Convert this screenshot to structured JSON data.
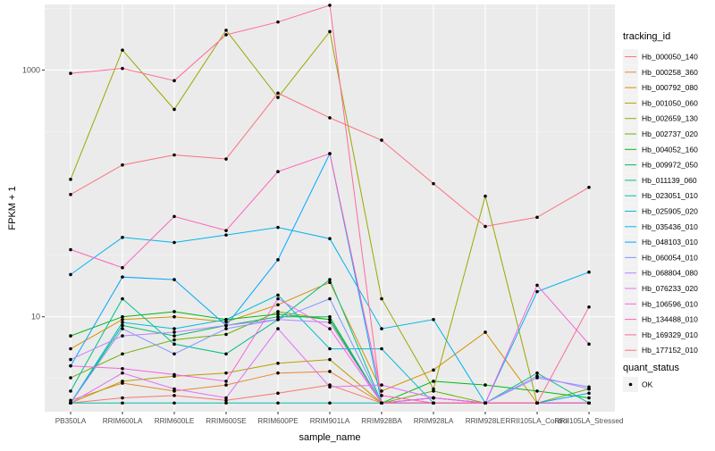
{
  "chart_data": {
    "type": "line",
    "xlabel": "sample_name",
    "ylabel": "FPKM + 1",
    "y_scale": "log10",
    "ylim": [
      1.7,
      3400
    ],
    "y_ticks": [
      10,
      1000
    ],
    "y_tick_labels": [
      "10",
      "1000"
    ],
    "grid": true,
    "categories": [
      "PB350LA",
      "RRIM600LA",
      "RRIM600LE",
      "RRIM600SE",
      "RRIM600PE",
      "RRIM901LA",
      "RRIM928BA",
      "RRIM928LA",
      "RRIM928LE",
      "RRII105LA_Control",
      "RRII105LA_Stressed"
    ],
    "legend": {
      "color_title": "tracking_id",
      "shape_title": "quant_status",
      "shape_entries": [
        "OK"
      ],
      "position": "right"
    },
    "series": [
      {
        "name": "Hb_000050_140",
        "color": "#F8766D",
        "values": [
          2,
          2.2,
          2.3,
          2.1,
          2.4,
          2.8,
          2,
          2,
          2,
          2,
          2
        ]
      },
      {
        "name": "Hb_000258_360",
        "color": "#E98531",
        "values": [
          2.1,
          2.9,
          2.5,
          2.8,
          3.5,
          3.6,
          2,
          2,
          2,
          2,
          2
        ]
      },
      {
        "name": "Hb_000792_080",
        "color": "#D69100",
        "values": [
          5.5,
          9.5,
          10,
          9.1,
          12.5,
          19,
          2.5,
          3.7,
          7.5,
          2,
          2
        ]
      },
      {
        "name": "Hb_001050_060",
        "color": "#BC9D00",
        "values": [
          2,
          3,
          3.3,
          3.5,
          4.2,
          4.5,
          2,
          2.2,
          2,
          2,
          2
        ]
      },
      {
        "name": "Hb_002659_130",
        "color": "#9CA700",
        "values": [
          130,
          1450,
          480,
          2100,
          600,
          2050,
          14,
          2.6,
          95,
          2,
          2
        ]
      },
      {
        "name": "Hb_002737_020",
        "color": "#6FB000",
        "values": [
          3.2,
          5,
          6.5,
          7.2,
          11,
          9.5,
          2,
          2.5,
          2,
          2,
          2.6
        ]
      },
      {
        "name": "Hb_004052_160",
        "color": "#00B813",
        "values": [
          7,
          10,
          11,
          9.5,
          10.5,
          9.5,
          2,
          3,
          2.8,
          2.5,
          2.2
        ]
      },
      {
        "name": "Hb_009972_050",
        "color": "#00BD61",
        "values": [
          2,
          8.5,
          7,
          8.5,
          10,
          10,
          2,
          2,
          2,
          2,
          2
        ]
      },
      {
        "name": "Hb_011139_060",
        "color": "#00C08E",
        "values": [
          2.5,
          14,
          6,
          5,
          9.5,
          20,
          2,
          2,
          2,
          3.5,
          2
        ]
      },
      {
        "name": "Hb_023051_010",
        "color": "#00C0B4",
        "values": [
          2,
          2,
          2,
          2,
          2,
          2,
          2,
          2,
          2,
          2,
          2
        ]
      },
      {
        "name": "Hb_025905_020",
        "color": "#00BDD4",
        "values": [
          2,
          9,
          8,
          9.5,
          15,
          5.5,
          5.5,
          2,
          2,
          2,
          2
        ]
      },
      {
        "name": "Hb_035436_010",
        "color": "#00B5EE",
        "values": [
          22,
          44,
          40,
          46,
          53,
          43,
          8,
          9.5,
          2,
          16,
          23
        ]
      },
      {
        "name": "Hb_048103_010",
        "color": "#00A7FF",
        "values": [
          4,
          21,
          20,
          8.5,
          29,
          210,
          2,
          2.2,
          2,
          2,
          2.4
        ]
      },
      {
        "name": "Hb_060054_010",
        "color": "#7F96FF",
        "values": [
          2,
          8,
          5,
          8,
          9.5,
          14,
          2,
          2.2,
          2,
          3.2,
          2.7
        ]
      },
      {
        "name": "Hb_068804_080",
        "color": "#BC81FF",
        "values": [
          4.5,
          7,
          7.5,
          8.5,
          9.5,
          9,
          2,
          2,
          2,
          3.3,
          2.6
        ]
      },
      {
        "name": "Hb_076233_020",
        "color": "#E26EF7",
        "values": [
          2,
          3.5,
          2.6,
          2.2,
          8,
          2.7,
          2.8,
          2.2,
          2,
          2,
          2
        ]
      },
      {
        "name": "Hb_106596_010",
        "color": "#F863DF",
        "values": [
          4,
          3.8,
          3.4,
          3,
          14,
          8,
          2,
          2.2,
          2,
          18,
          6
        ]
      },
      {
        "name": "Hb_134488_010",
        "color": "#FF62BC",
        "values": [
          35,
          25,
          65,
          50,
          150,
          210,
          2.3,
          2,
          2,
          2,
          2
        ]
      },
      {
        "name": "Hb_169329_010",
        "color": "#FF6A98",
        "values": [
          940,
          1030,
          820,
          1930,
          2450,
          3350,
          2,
          2,
          2,
          2,
          12
        ]
      },
      {
        "name": "Hb_177152_010",
        "color": "#FC717F",
        "values": [
          98,
          170,
          205,
          190,
          650,
          410,
          270,
          120,
          54,
          64,
          112
        ]
      }
    ]
  }
}
